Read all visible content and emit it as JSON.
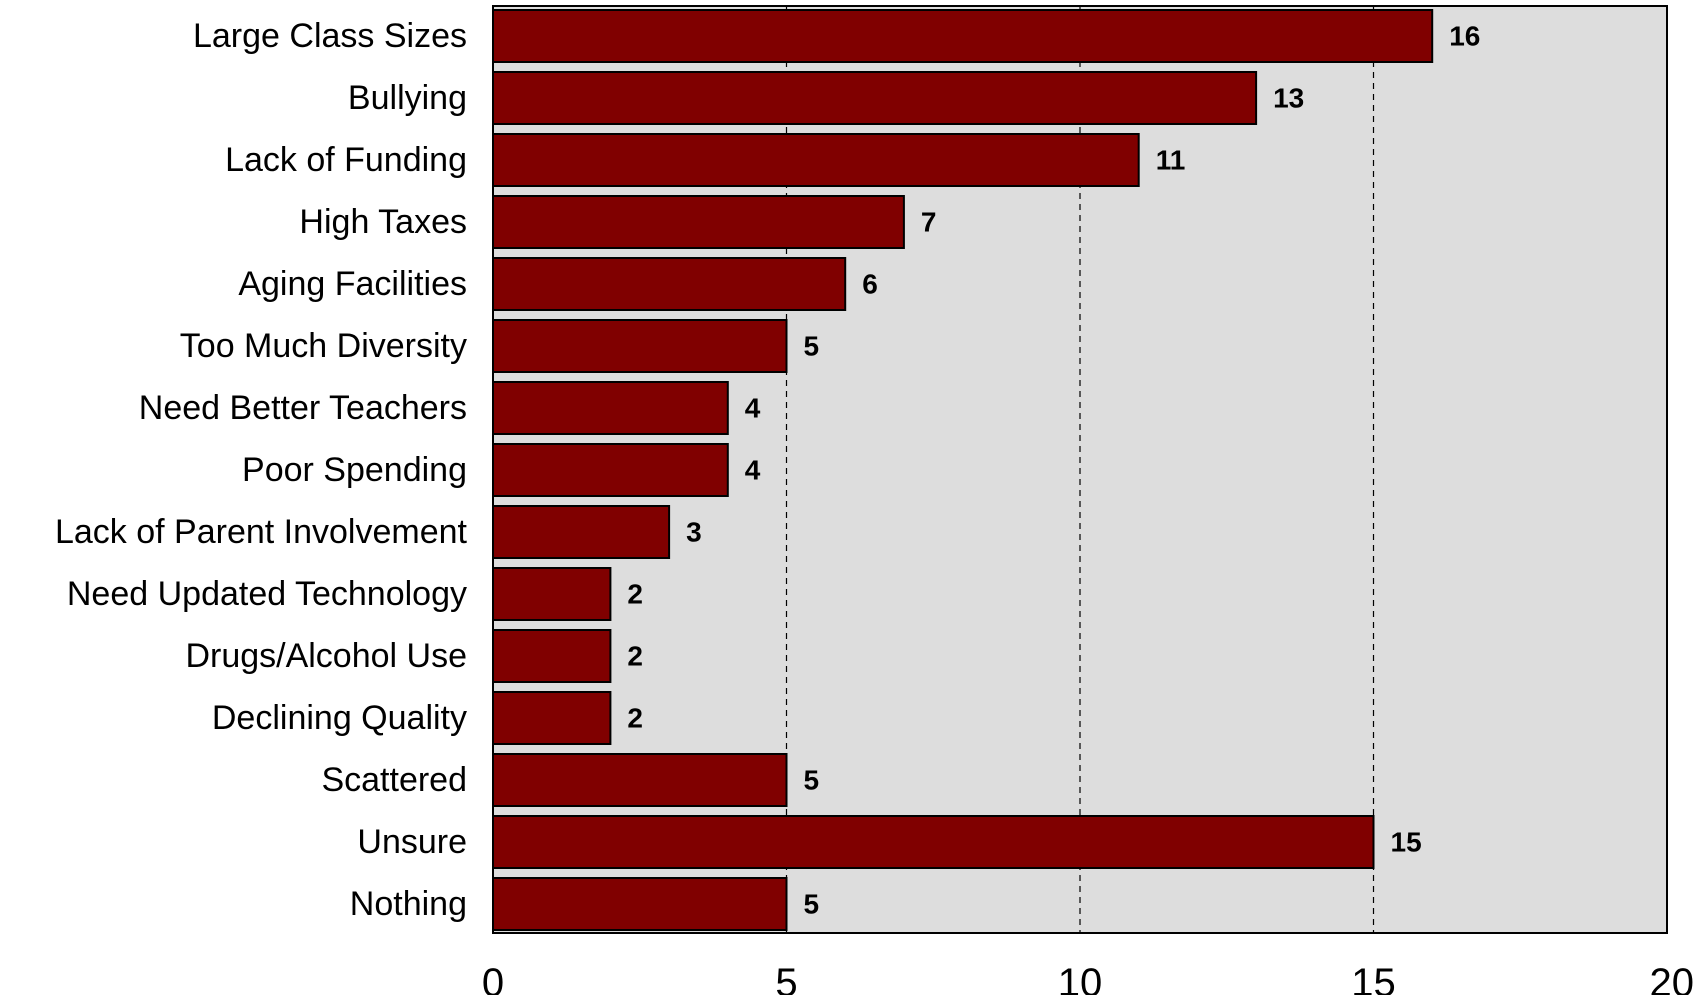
{
  "chart_data": {
    "type": "bar",
    "orientation": "horizontal",
    "title": "",
    "xlabel": "",
    "ylabel": "",
    "categories": [
      "Large Class Sizes",
      "Bullying",
      "Lack of Funding",
      "High Taxes",
      "Aging Facilities",
      "Too Much Diversity",
      "Need Better Teachers",
      "Poor Spending",
      "Lack of Parent Involvement",
      "Need Updated Technology",
      "Drugs/Alcohol Use",
      "Declining Quality",
      "Scattered",
      "Unsure",
      "Nothing"
    ],
    "values": [
      16,
      13,
      11,
      7,
      6,
      5,
      4,
      4,
      3,
      2,
      2,
      2,
      5,
      15,
      5
    ],
    "data_labels": [
      "16",
      "13",
      "11",
      "7",
      "6",
      "5",
      "4",
      "4",
      "3",
      "2",
      "2",
      "2",
      "5",
      "15",
      "5"
    ],
    "xlim": [
      0,
      20
    ],
    "x_ticks": [
      0,
      5,
      10,
      15,
      20
    ],
    "x_tick_labels": [
      "0",
      "5",
      "10",
      "15",
      "20"
    ],
    "grid": true,
    "grid_axis": "x",
    "grid_style": "dashed",
    "legend": "none",
    "colors": {
      "bar": "#800000",
      "bar_edge": "#000000",
      "plot_background": "#dddddd",
      "grid": "#000000"
    }
  }
}
